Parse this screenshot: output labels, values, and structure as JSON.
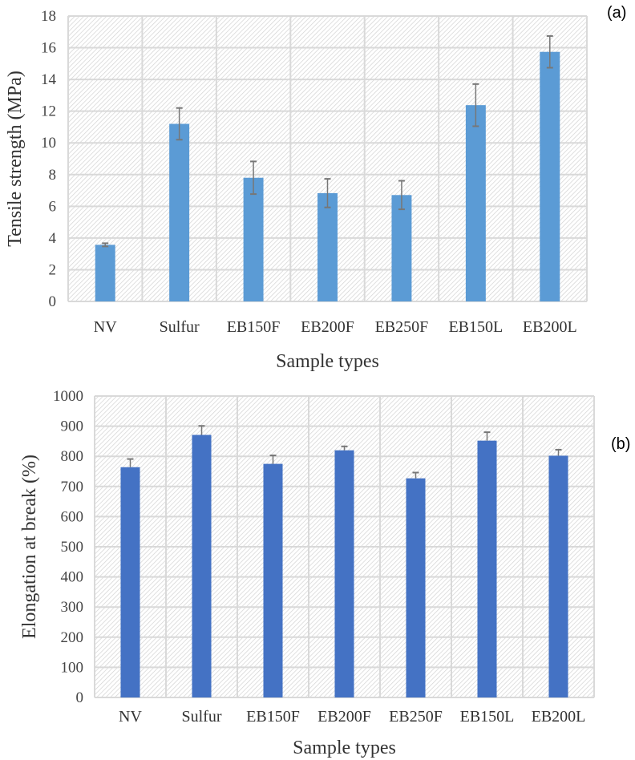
{
  "chart_data": [
    {
      "type": "bar",
      "panel_label": "(a)",
      "categories": [
        "NV",
        "Sulfur",
        "EB150F",
        "EB200F",
        "EB250F",
        "EB150L",
        "EB200L"
      ],
      "values": [
        3.57,
        11.2,
        7.8,
        6.83,
        6.71,
        12.38,
        15.74
      ],
      "errors": [
        0.1,
        1.0,
        1.03,
        0.9,
        0.9,
        1.33,
        1.0
      ],
      "error_bars": "both",
      "xlabel": "Sample types",
      "ylabel": "Tensile strength (MPa)",
      "ylim": [
        0,
        18
      ],
      "yticks": [
        0,
        2,
        4,
        6,
        8,
        10,
        12,
        14,
        16,
        18
      ],
      "grid": true,
      "bar_color": "#5b9bd5"
    },
    {
      "type": "bar",
      "panel_label": "(b)",
      "categories": [
        "NV",
        "Sulfur",
        "EB150F",
        "EB200F",
        "EB250F",
        "EB150L",
        "EB200L"
      ],
      "values": [
        764,
        871,
        775,
        820,
        727,
        852,
        802
      ],
      "errors": [
        27,
        30,
        28,
        13,
        19,
        28,
        20
      ],
      "error_bars": "plus",
      "xlabel": "Sample types",
      "ylabel": "Elongation at break (%)",
      "ylim": [
        0,
        1000
      ],
      "yticks": [
        0,
        100,
        200,
        300,
        400,
        500,
        600,
        700,
        800,
        900,
        1000
      ],
      "grid": true,
      "bar_color": "#4472c4"
    }
  ]
}
